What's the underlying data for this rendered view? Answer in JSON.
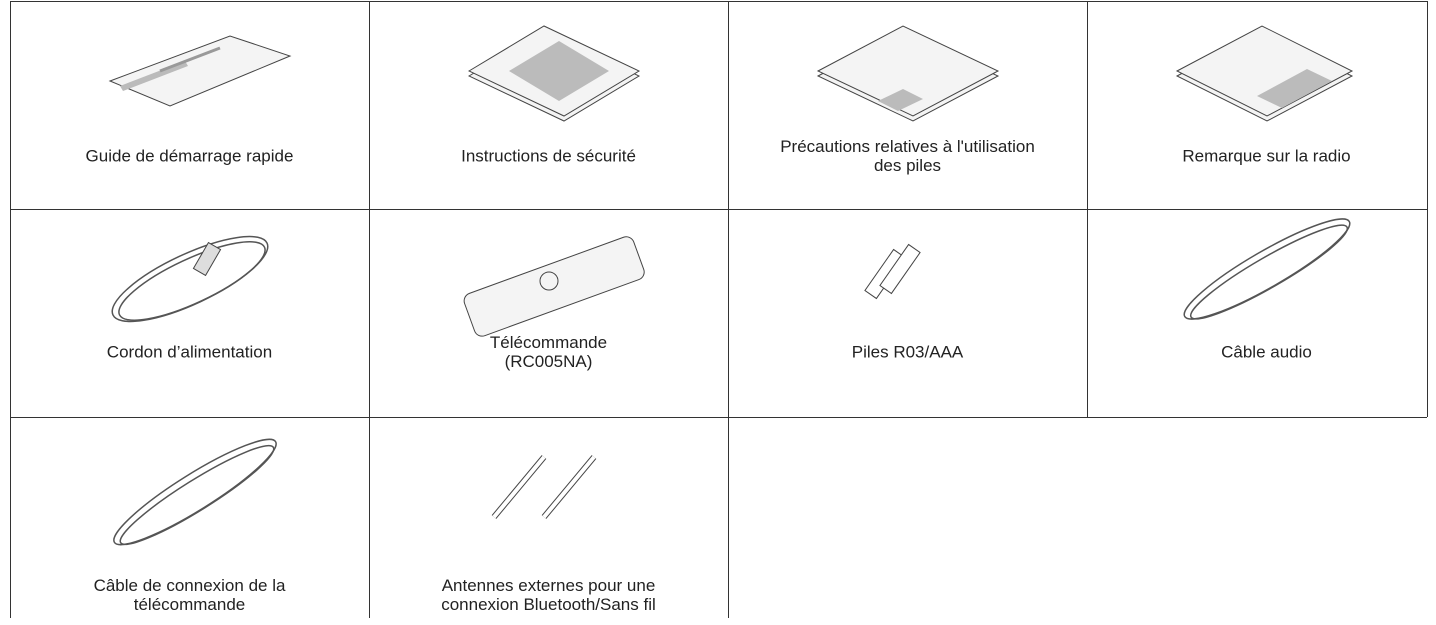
{
  "items": [
    {
      "lines": [
        "Guide de démarrage rapide"
      ]
    },
    {
      "lines": [
        "Instructions de sécurité"
      ]
    },
    {
      "lines": [
        "Précautions relatives à l'utilisation",
        "des piles"
      ]
    },
    {
      "lines": [
        "Remarque sur la radio"
      ]
    },
    {
      "lines": [
        "Cordon d’alimentation"
      ]
    },
    {
      "lines": [
        "Télécommande",
        "(RC005NA)"
      ]
    },
    {
      "lines": [
        "Piles R03/AAA"
      ]
    },
    {
      "lines": [
        "Câble audio"
      ]
    },
    {
      "lines": [
        "Câble de connexion de la",
        "télécommande"
      ]
    },
    {
      "lines": [
        "Antennes externes pour une",
        "connexion Bluetooth/Sans fil"
      ]
    }
  ]
}
